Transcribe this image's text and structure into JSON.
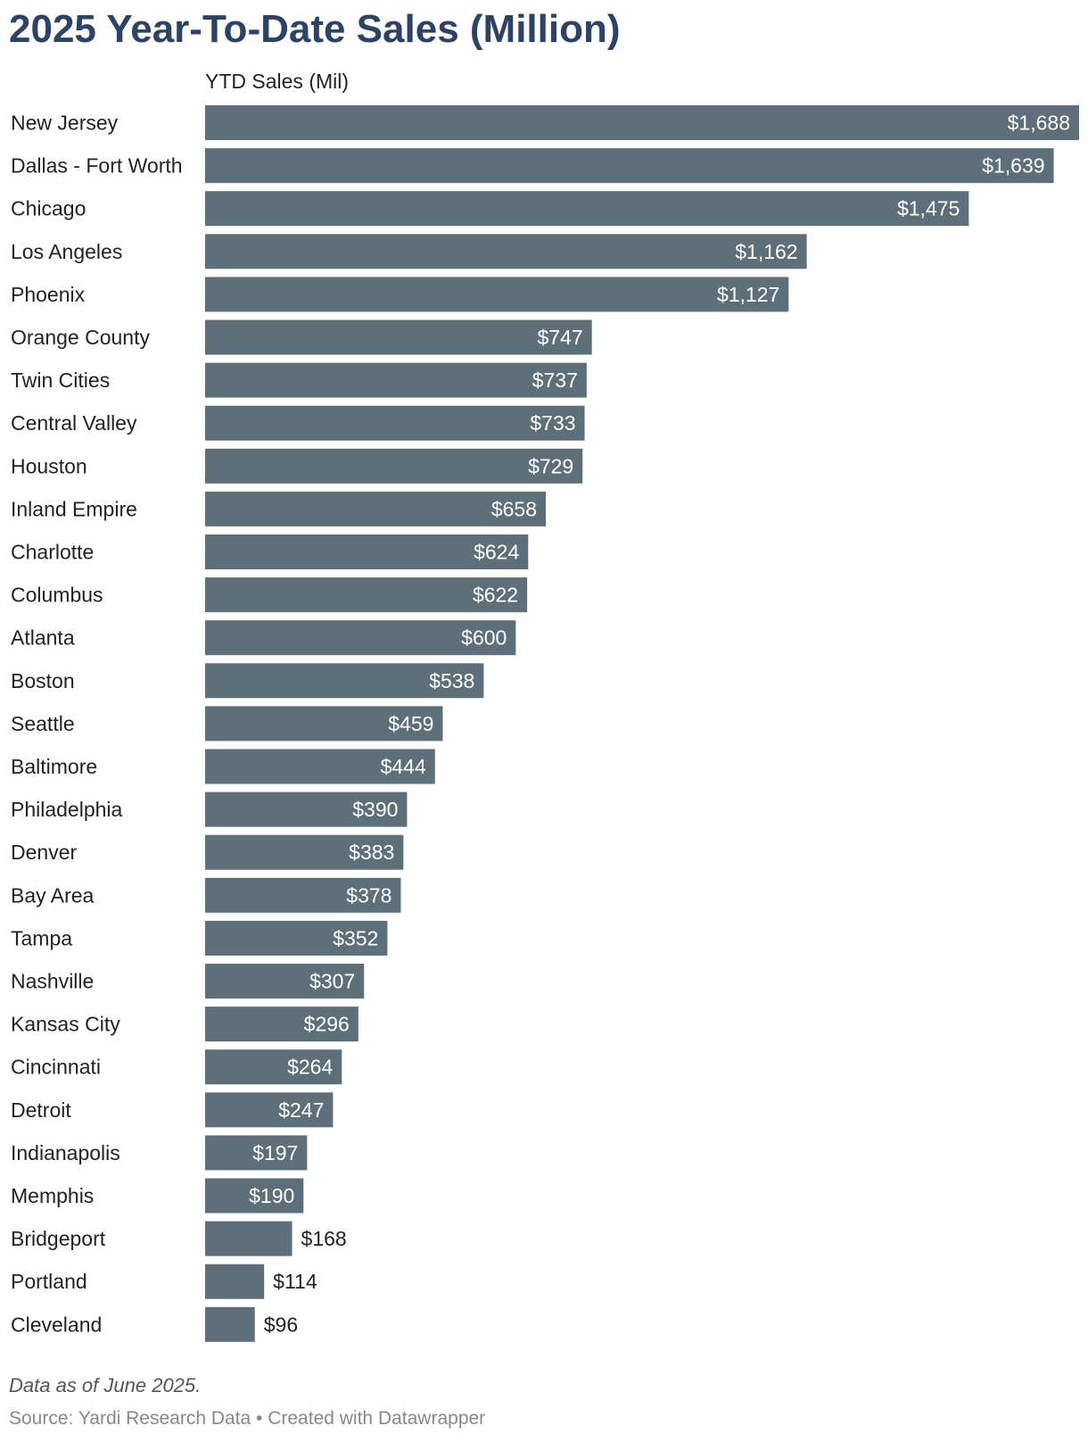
{
  "title": "2025 Year-To-Date Sales (Million)",
  "column_header": "YTD Sales (Mil)",
  "note": "Data as of June 2025.",
  "source": "Source: Yardi Research Data • Created with Datawrapper",
  "colors": {
    "bar": "#5d7079",
    "title": "#2c4268",
    "label_inside": "#ffffff",
    "label_outside": "#222222"
  },
  "chart_data": {
    "type": "bar",
    "orientation": "horizontal",
    "title": "2025 Year-To-Date Sales (Million)",
    "xlabel": "YTD Sales (Mil)",
    "ylabel": "",
    "xlim": [
      0,
      1688
    ],
    "categories": [
      "New Jersey",
      "Dallas - Fort Worth",
      "Chicago",
      "Los Angeles",
      "Phoenix",
      "Orange County",
      "Twin Cities",
      "Central Valley",
      "Houston",
      "Inland Empire",
      "Charlotte",
      "Columbus",
      "Atlanta",
      "Boston",
      "Seattle",
      "Baltimore",
      "Philadelphia",
      "Denver",
      "Bay Area",
      "Tampa",
      "Nashville",
      "Kansas City",
      "Cincinnati",
      "Detroit",
      "Indianapolis",
      "Memphis",
      "Bridgeport",
      "Portland",
      "Cleveland"
    ],
    "values": [
      1688,
      1639,
      1475,
      1162,
      1127,
      747,
      737,
      733,
      729,
      658,
      624,
      622,
      600,
      538,
      459,
      444,
      390,
      383,
      378,
      352,
      307,
      296,
      264,
      247,
      197,
      190,
      168,
      114,
      96
    ],
    "value_labels": [
      "$1,688",
      "$1,639",
      "$1,475",
      "$1,162",
      "$1,127",
      "$747",
      "$737",
      "$733",
      "$729",
      "$658",
      "$624",
      "$622",
      "$600",
      "$538",
      "$459",
      "$444",
      "$390",
      "$383",
      "$378",
      "$352",
      "$307",
      "$296",
      "$264",
      "$247",
      "$197",
      "$190",
      "$168",
      "$114",
      "$96"
    ]
  }
}
